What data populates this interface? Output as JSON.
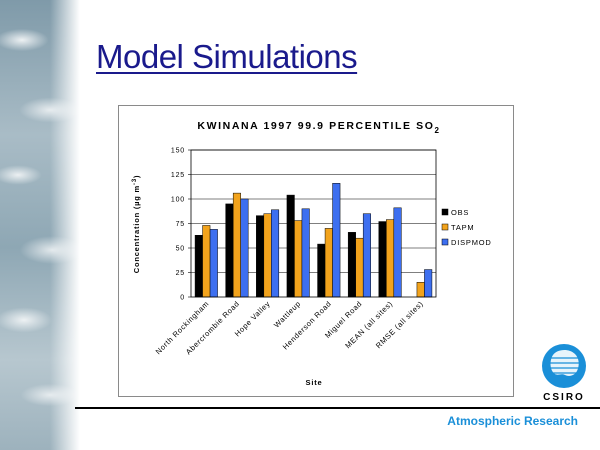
{
  "slide": {
    "title": "Model Simulations",
    "footer": "Atmospheric Research",
    "logo_text": "CSIRO"
  },
  "chart_data": {
    "type": "bar",
    "title_main": "KWINANA 1997 99.9 PERCENTILE SO",
    "title_sub": "2",
    "xlabel": "Site",
    "ylabel_main": "Concentration (µg m",
    "ylabel_sup": "-3",
    "ylabel_end": ")",
    "ylim": [
      0,
      150
    ],
    "yticks": [
      0,
      25,
      50,
      75,
      100,
      125,
      150
    ],
    "grid": true,
    "legend_position": "right",
    "categories": [
      "North Rockingham",
      "Abercrombie Road",
      "Hope Valley",
      "Wattleup",
      "Henderson Road",
      "Miguel Road",
      "MEAN (all sites)",
      "RMSE (all sites)"
    ],
    "series": [
      {
        "name": "OBS",
        "color": "#000000",
        "values": [
          63,
          95,
          83,
          104,
          54,
          66,
          77,
          null
        ]
      },
      {
        "name": "TAPM",
        "color": "#f2a31c",
        "values": [
          73,
          106,
          85,
          78,
          70,
          60,
          79,
          15
        ]
      },
      {
        "name": "DISPMOD",
        "color": "#3d6ff0",
        "values": [
          69,
          100,
          89,
          90,
          116,
          85,
          91,
          28
        ]
      }
    ]
  }
}
